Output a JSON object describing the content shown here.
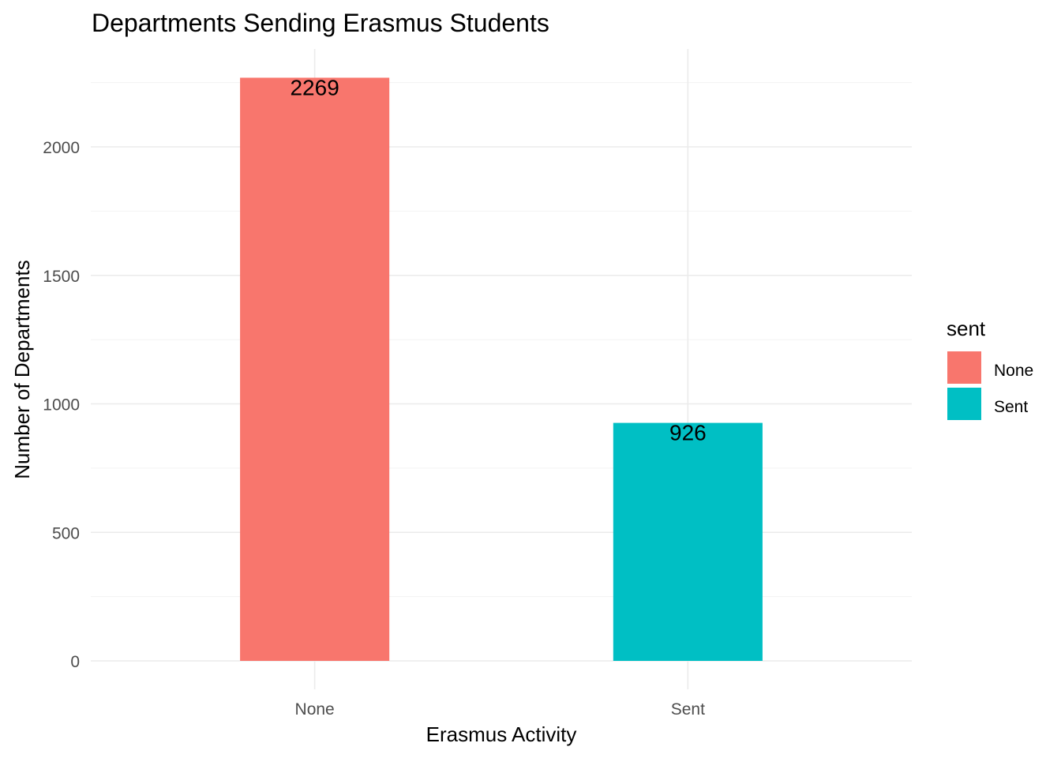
{
  "chart_data": {
    "type": "bar",
    "title": "Departments Sending Erasmus Students",
    "xlabel": "Erasmus Activity",
    "ylabel": "Number of Departments",
    "categories": [
      "None",
      "Sent"
    ],
    "values": [
      2269,
      926
    ],
    "colors": [
      "#F8766D",
      "#00BFC4"
    ],
    "data_labels": [
      "2269",
      "926"
    ],
    "ylim": [
      0,
      2300
    ],
    "yticks": [
      0,
      500,
      1000,
      1500,
      2000
    ],
    "ytick_labels": [
      "0",
      "500",
      "1000",
      "1500",
      "2000"
    ],
    "grid": true,
    "legend": {
      "title": "sent",
      "placement": "right",
      "entries": [
        {
          "label": "None",
          "color": "#F8766D"
        },
        {
          "label": "Sent",
          "color": "#00BFC4"
        }
      ]
    }
  }
}
